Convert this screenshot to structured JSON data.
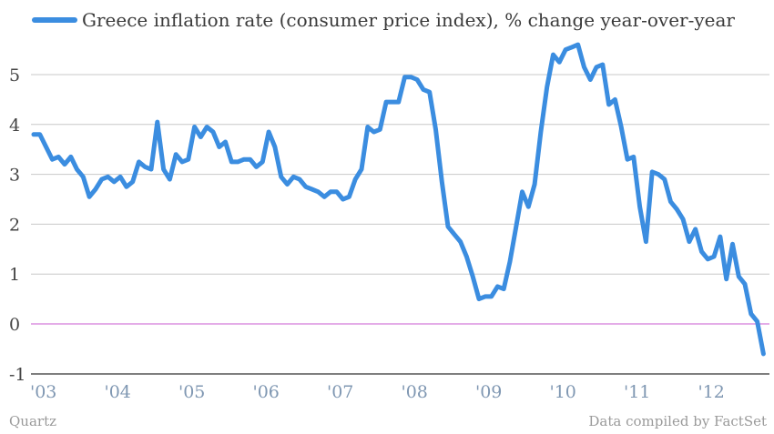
{
  "chart_data": {
    "type": "line",
    "title": "",
    "xlabel": "",
    "ylabel": "",
    "ylim": [
      -1,
      5.8
    ],
    "grid": true,
    "legend_position": "top-left",
    "yticks": [
      "-1",
      "0",
      "1",
      "2",
      "3",
      "4",
      "5"
    ],
    "xticks": [
      "'03",
      "'04",
      "'05",
      "'06",
      "'07",
      "'08",
      "'09",
      "'10",
      "'11",
      "'12"
    ],
    "series": [
      {
        "name": "Greece inflation rate (consumer price index), % change year-over-year",
        "color": "#3b8de0",
        "x": [
          "2003-01",
          "2003-02",
          "2003-03",
          "2003-04",
          "2003-05",
          "2003-06",
          "2003-07",
          "2003-08",
          "2003-09",
          "2003-10",
          "2003-11",
          "2003-12",
          "2004-01",
          "2004-02",
          "2004-03",
          "2004-04",
          "2004-05",
          "2004-06",
          "2004-07",
          "2004-08",
          "2004-09",
          "2004-10",
          "2004-11",
          "2004-12",
          "2005-01",
          "2005-02",
          "2005-03",
          "2005-04",
          "2005-05",
          "2005-06",
          "2005-07",
          "2005-08",
          "2005-09",
          "2005-10",
          "2005-11",
          "2005-12",
          "2006-01",
          "2006-02",
          "2006-03",
          "2006-04",
          "2006-05",
          "2006-06",
          "2006-07",
          "2006-08",
          "2006-09",
          "2006-10",
          "2006-11",
          "2006-12",
          "2007-01",
          "2007-02",
          "2007-03",
          "2007-04",
          "2007-05",
          "2007-06",
          "2007-07",
          "2007-08",
          "2007-09",
          "2007-10",
          "2007-11",
          "2007-12",
          "2008-01",
          "2008-02",
          "2008-03",
          "2008-04",
          "2008-05",
          "2008-06",
          "2008-07",
          "2008-08",
          "2008-09",
          "2008-10",
          "2008-11",
          "2008-12",
          "2009-01",
          "2009-02",
          "2009-03",
          "2009-04",
          "2009-05",
          "2009-06",
          "2009-07",
          "2009-08",
          "2009-09",
          "2009-10",
          "2009-11",
          "2009-12",
          "2010-01",
          "2010-02",
          "2010-03",
          "2010-04",
          "2010-05",
          "2010-06",
          "2010-07",
          "2010-08",
          "2010-09",
          "2010-10",
          "2010-11",
          "2010-12",
          "2011-01",
          "2011-02",
          "2011-03",
          "2011-04",
          "2011-05",
          "2011-06",
          "2011-07",
          "2011-08",
          "2011-09",
          "2011-10",
          "2011-11",
          "2011-12",
          "2012-01",
          "2012-02",
          "2012-03",
          "2012-04",
          "2012-05",
          "2012-06",
          "2012-07",
          "2012-08",
          "2012-09",
          "2012-10",
          "2012-11"
        ],
        "values": [
          3.8,
          3.8,
          3.55,
          3.3,
          3.35,
          3.2,
          3.35,
          3.1,
          2.95,
          2.55,
          2.7,
          2.9,
          2.95,
          2.85,
          2.95,
          2.75,
          2.85,
          3.25,
          3.15,
          3.1,
          4.05,
          3.1,
          2.9,
          3.4,
          3.25,
          3.3,
          3.95,
          3.75,
          3.95,
          3.85,
          3.55,
          3.65,
          3.25,
          3.25,
          3.3,
          3.3,
          3.15,
          3.25,
          3.85,
          3.55,
          2.95,
          2.8,
          2.95,
          2.9,
          2.75,
          2.7,
          2.65,
          2.55,
          2.65,
          2.65,
          2.5,
          2.55,
          2.9,
          3.1,
          3.95,
          3.85,
          3.9,
          4.45,
          4.45,
          4.45,
          4.95,
          4.95,
          4.9,
          4.7,
          4.65,
          3.9,
          2.85,
          1.95,
          1.8,
          1.65,
          1.35,
          0.95,
          0.5,
          0.55,
          0.55,
          0.75,
          0.7,
          1.25,
          1.95,
          2.65,
          2.35,
          2.8,
          3.85,
          4.75,
          5.4,
          5.25,
          5.5,
          5.55,
          5.6,
          5.15,
          4.9,
          5.15,
          5.2,
          4.4,
          4.5,
          3.95,
          3.3,
          3.35,
          2.35,
          1.65,
          3.05,
          3.0,
          2.9,
          2.45,
          2.3,
          2.1,
          1.65,
          1.9,
          1.45,
          1.3,
          1.35,
          1.75,
          0.9,
          1.6,
          0.95,
          0.8,
          0.2,
          0.05,
          -0.6
        ]
      }
    ]
  },
  "footer": {
    "source_left": "Quartz",
    "source_right": "Data compiled by FactSet"
  }
}
